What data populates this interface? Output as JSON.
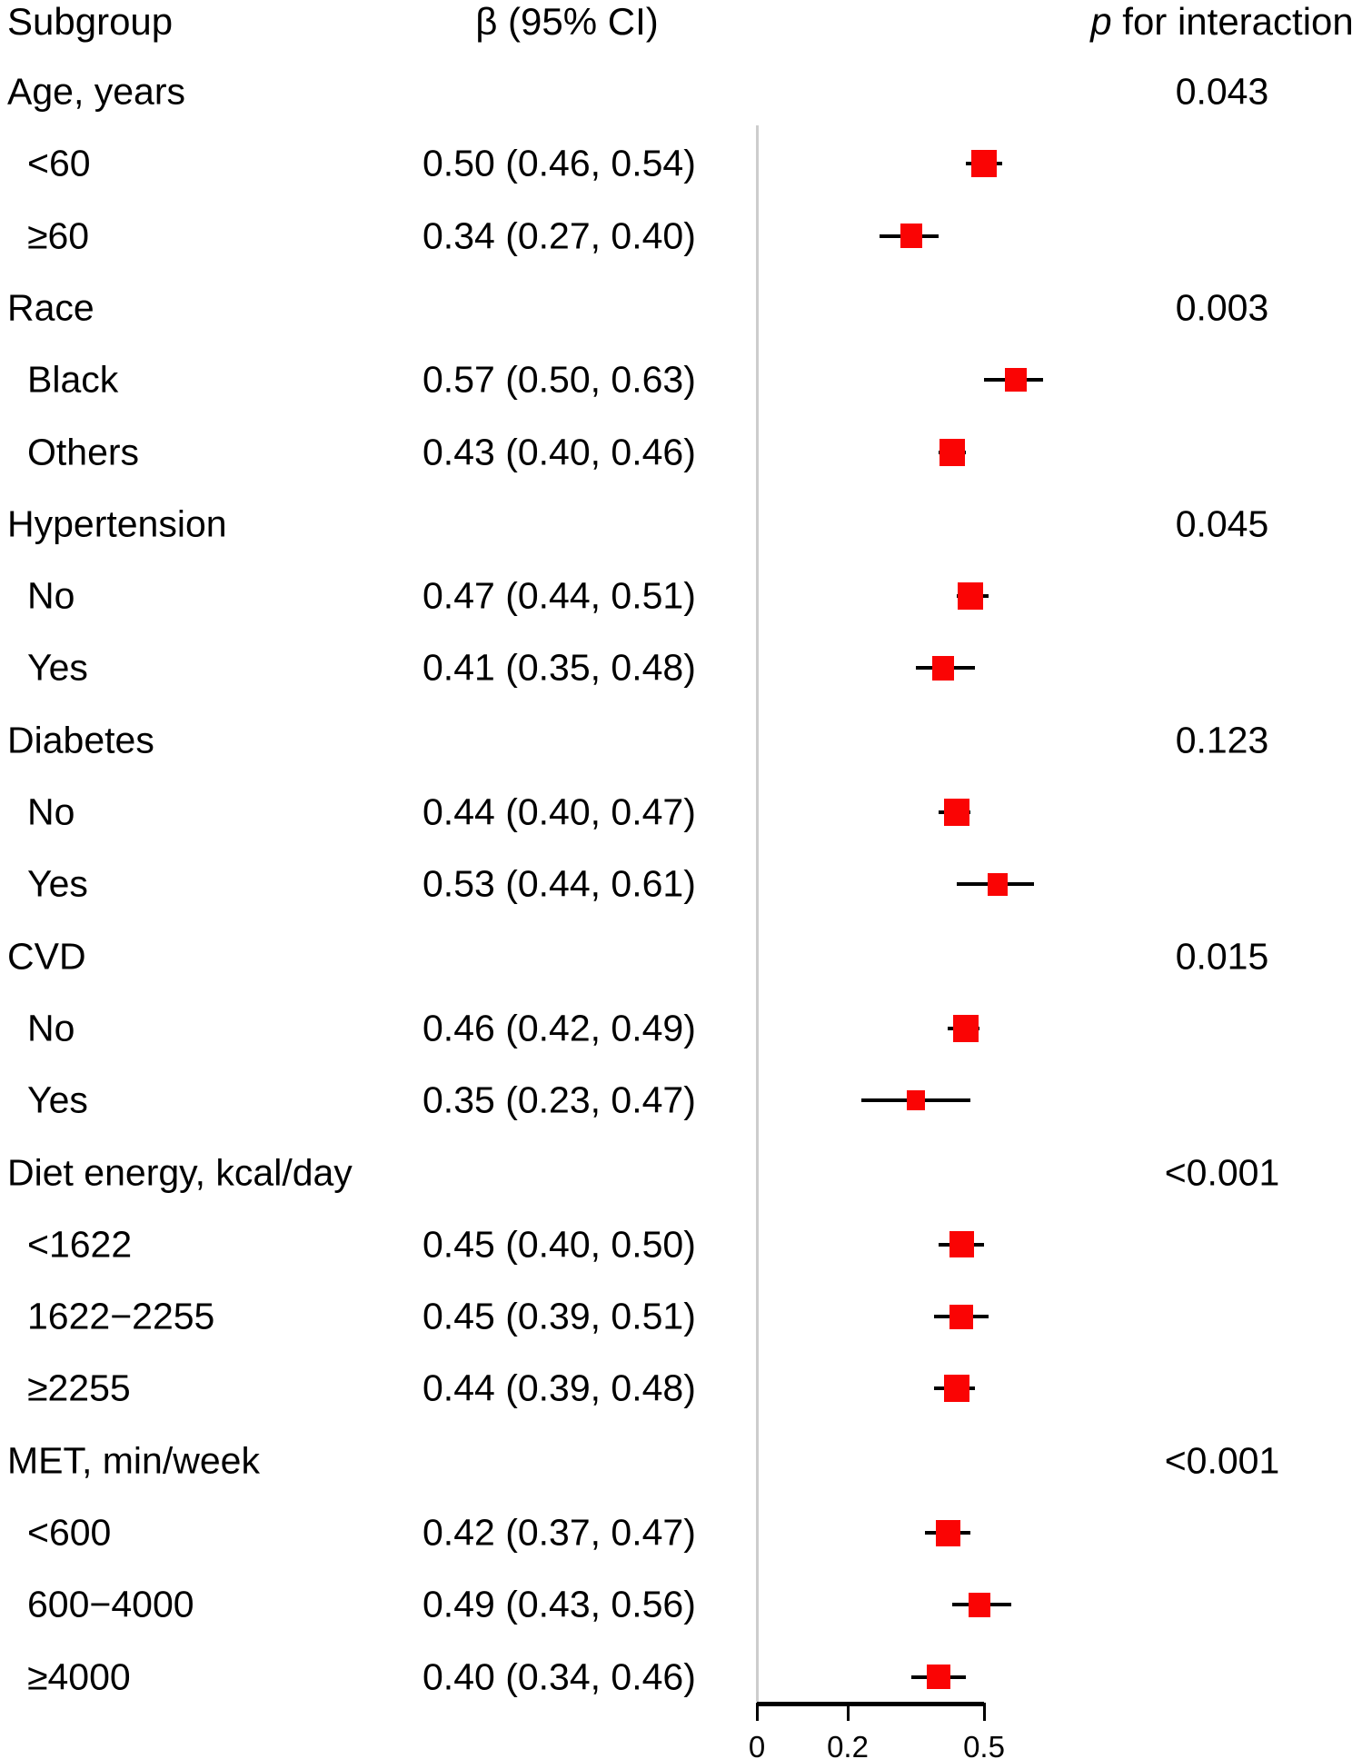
{
  "chart_data": {
    "type": "forest",
    "columns": {
      "subgroup": "Subgroup",
      "beta_ci": "β (95% CI)",
      "p_italic": "p",
      "p_rest": " for interaction"
    },
    "axis": {
      "ticks": [
        0,
        0.2,
        0.5
      ],
      "tick_labels": [
        "0",
        "0.2",
        "0.5"
      ],
      "range_shown": [
        0,
        0.5
      ],
      "reference_line_value": 0
    },
    "marker_color": "#fa0404",
    "ci_color": "#000000",
    "reference_line_color": "#cdcdcd",
    "groups": [
      {
        "label": "Age, years",
        "p_interaction": "0.043",
        "rows": [
          {
            "label": "<60",
            "ci_text": "0.50 (0.46, 0.54)",
            "beta": 0.5,
            "lo": 0.46,
            "hi": 0.54
          },
          {
            "label": "≥60",
            "ci_text": "0.34 (0.27, 0.40)",
            "beta": 0.34,
            "lo": 0.27,
            "hi": 0.4
          }
        ]
      },
      {
        "label": "Race",
        "p_interaction": "0.003",
        "rows": [
          {
            "label": "Black",
            "ci_text": "0.57 (0.50, 0.63)",
            "beta": 0.57,
            "lo": 0.5,
            "hi": 0.63
          },
          {
            "label": "Others",
            "ci_text": "0.43 (0.40, 0.46)",
            "beta": 0.43,
            "lo": 0.4,
            "hi": 0.46
          }
        ]
      },
      {
        "label": "Hypertension",
        "p_interaction": "0.045",
        "rows": [
          {
            "label": "No",
            "ci_text": "0.47 (0.44, 0.51)",
            "beta": 0.47,
            "lo": 0.44,
            "hi": 0.51
          },
          {
            "label": "Yes",
            "ci_text": "0.41 (0.35, 0.48)",
            "beta": 0.41,
            "lo": 0.35,
            "hi": 0.48
          }
        ]
      },
      {
        "label": "Diabetes",
        "p_interaction": "0.123",
        "rows": [
          {
            "label": "No",
            "ci_text": "0.44 (0.40, 0.47)",
            "beta": 0.44,
            "lo": 0.4,
            "hi": 0.47
          },
          {
            "label": "Yes",
            "ci_text": "0.53 (0.44, 0.61)",
            "beta": 0.53,
            "lo": 0.44,
            "hi": 0.61
          }
        ]
      },
      {
        "label": "CVD",
        "p_interaction": "0.015",
        "rows": [
          {
            "label": "No",
            "ci_text": "0.46 (0.42, 0.49)",
            "beta": 0.46,
            "lo": 0.42,
            "hi": 0.49
          },
          {
            "label": "Yes",
            "ci_text": "0.35 (0.23, 0.47)",
            "beta": 0.35,
            "lo": 0.23,
            "hi": 0.47
          }
        ]
      },
      {
        "label": "Diet energy, kcal/day",
        "p_interaction": "<0.001",
        "rows": [
          {
            "label": "<1622",
            "ci_text": "0.45 (0.40, 0.50)",
            "beta": 0.45,
            "lo": 0.4,
            "hi": 0.5
          },
          {
            "label": "1622−2255",
            "ci_text": "0.45 (0.39, 0.51)",
            "beta": 0.45,
            "lo": 0.39,
            "hi": 0.51
          },
          {
            "label": "≥2255",
            "ci_text": "0.44 (0.39, 0.48)",
            "beta": 0.44,
            "lo": 0.39,
            "hi": 0.48
          }
        ]
      },
      {
        "label": "MET, min/week",
        "p_interaction": "<0.001",
        "rows": [
          {
            "label": "<600",
            "ci_text": "0.42 (0.37, 0.47)",
            "beta": 0.42,
            "lo": 0.37,
            "hi": 0.47
          },
          {
            "label": "600−4000",
            "ci_text": "0.49 (0.43, 0.56)",
            "beta": 0.49,
            "lo": 0.43,
            "hi": 0.56
          },
          {
            "label": "≥4000",
            "ci_text": "0.40 (0.34, 0.46)",
            "beta": 0.4,
            "lo": 0.34,
            "hi": 0.46
          }
        ]
      }
    ]
  }
}
